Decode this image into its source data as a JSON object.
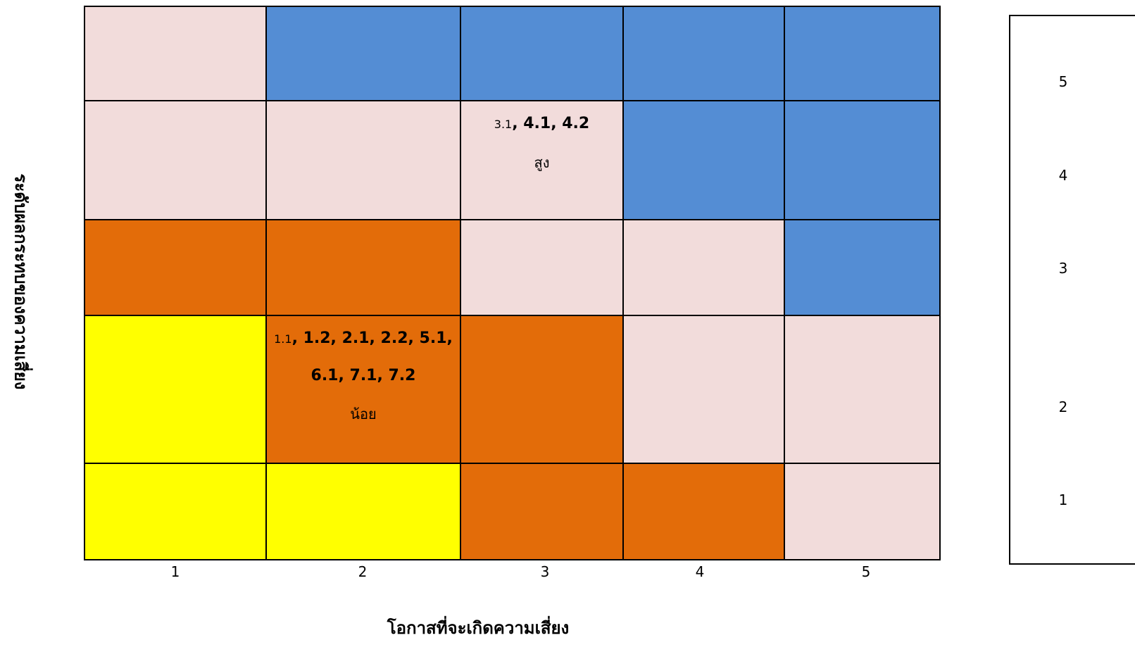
{
  "chart_data": {
    "type": "heatmap",
    "xlabel": "โอกาสที่จะเกิดความเสี่ยง",
    "ylabel": "ระดับผลกระทบของความเสี่ยง",
    "x_ticks": [
      "1",
      "2",
      "3",
      "4",
      "5"
    ],
    "side_ticks": [
      "5",
      "4",
      "3",
      "2",
      "1"
    ],
    "colors": {
      "blue": "#548dd4",
      "pink": "#f2dcdb",
      "orange": "#e36c09",
      "yellow": "#ffff00"
    },
    "rows": [
      {
        "impact": 5,
        "cells": [
          "pink",
          "blue",
          "blue",
          "blue",
          "blue"
        ]
      },
      {
        "impact": 4,
        "cells": [
          "pink",
          "pink",
          "pink",
          "blue",
          "blue"
        ]
      },
      {
        "impact": 3,
        "cells": [
          "orange",
          "orange",
          "pink",
          "pink",
          "blue"
        ]
      },
      {
        "impact": 2,
        "cells": [
          "yellow",
          "orange",
          "orange",
          "pink",
          "pink"
        ]
      },
      {
        "impact": 1,
        "cells": [
          "yellow",
          "yellow",
          "orange",
          "orange",
          "pink"
        ]
      }
    ],
    "annotations": [
      {
        "impact": 4,
        "likelihood": 3,
        "small": "3.1",
        "lines": [
          ", 4.1, 4.2"
        ],
        "level": "สูง"
      },
      {
        "impact": 2,
        "likelihood": 2,
        "small": "1.1",
        "lines": [
          ", 1.2, 2.1, 2.2, 5.1,",
          "6.1, 7.1, 7.2"
        ],
        "level": "น้อย"
      }
    ]
  }
}
